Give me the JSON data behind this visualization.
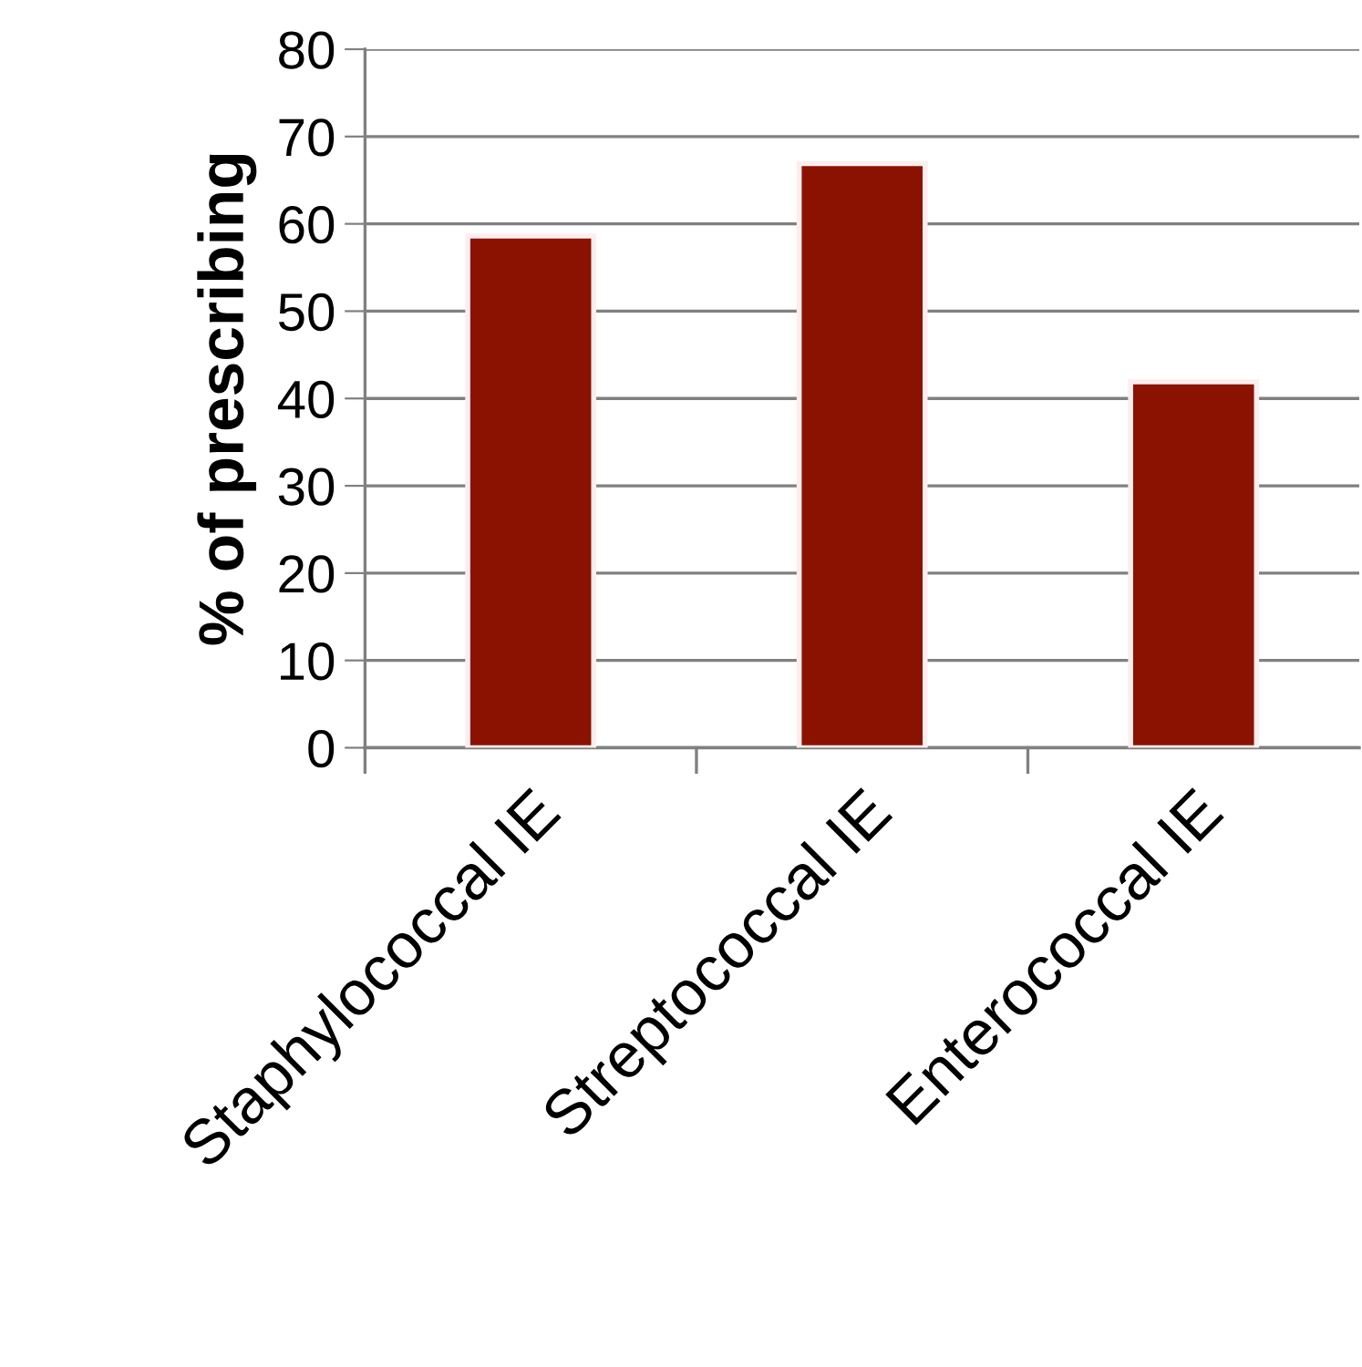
{
  "chart_data": {
    "type": "bar",
    "ylabel": "% of prescribing",
    "categories": [
      "Staphylococcal IE",
      "Streptococcal IE",
      "Enterococcal IE"
    ],
    "values": [
      58.6,
      66.9,
      41.9
    ],
    "color": "#8b1200",
    "ylim": [
      0,
      80
    ],
    "yticks": [
      0,
      10,
      20,
      30,
      40,
      50,
      60,
      70,
      80
    ],
    "grid": "y",
    "legend": false
  }
}
